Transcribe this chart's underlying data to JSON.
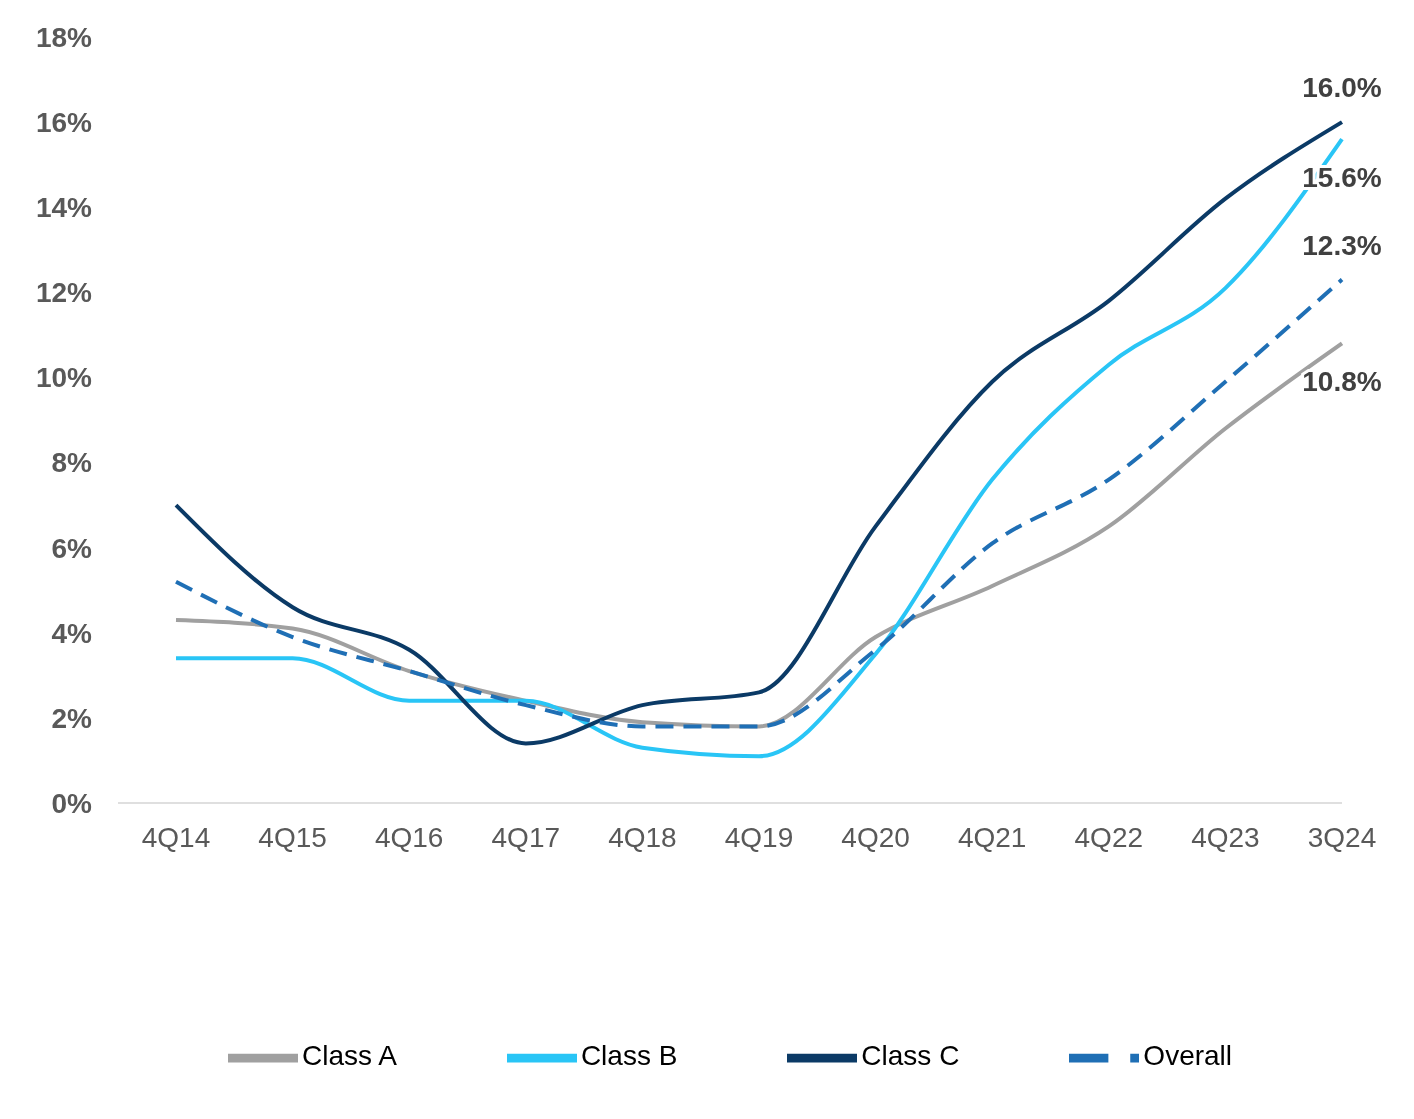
{
  "chart_data": {
    "type": "line",
    "categories": [
      "4Q14",
      "4Q15",
      "4Q16",
      "4Q17",
      "4Q18",
      "4Q19",
      "4Q20",
      "4Q21",
      "4Q22",
      "4Q23",
      "3Q24"
    ],
    "series": [
      {
        "name": "Class A",
        "color": "#a0a0a0",
        "line_style": "solid",
        "values": [
          4.3,
          4.1,
          3.1,
          2.4,
          1.9,
          1.8,
          3.9,
          5.1,
          6.5,
          8.8,
          10.8
        ],
        "value_labels": [
          null,
          null,
          null,
          null,
          null,
          null,
          null,
          null,
          null,
          null,
          "10.8%"
        ]
      },
      {
        "name": "Class B",
        "color": "#29c5f6",
        "line_style": "solid",
        "values": [
          3.4,
          3.4,
          2.4,
          2.4,
          1.3,
          1.1,
          3.5,
          7.6,
          10.3,
          12.1,
          15.6
        ],
        "value_labels": [
          null,
          null,
          null,
          null,
          null,
          null,
          null,
          null,
          null,
          null,
          "15.6%"
        ]
      },
      {
        "name": "Class C",
        "color": "#0b3a66",
        "line_style": "solid",
        "values": [
          7.0,
          4.6,
          3.6,
          1.4,
          2.3,
          2.6,
          6.5,
          9.9,
          11.8,
          14.2,
          16.0
        ],
        "value_labels": [
          null,
          null,
          null,
          null,
          null,
          null,
          null,
          null,
          null,
          null,
          "16.0%"
        ]
      },
      {
        "name": "Overall",
        "color": "#1f6fb5",
        "line_style": "dashed",
        "values": [
          5.2,
          3.9,
          3.1,
          2.3,
          1.8,
          1.8,
          3.6,
          6.1,
          7.6,
          9.9,
          12.3
        ],
        "value_labels": [
          null,
          null,
          null,
          null,
          null,
          null,
          null,
          null,
          null,
          null,
          "12.3%"
        ]
      }
    ],
    "ylim": [
      0,
      18
    ],
    "yticks": [
      {
        "value": 0,
        "label": "0%"
      },
      {
        "value": 2,
        "label": "2%"
      },
      {
        "value": 4,
        "label": "4%"
      },
      {
        "value": 6,
        "label": "6%"
      },
      {
        "value": 8,
        "label": "8%"
      },
      {
        "value": 10,
        "label": "10%"
      },
      {
        "value": 12,
        "label": "12%"
      },
      {
        "value": 14,
        "label": "14%"
      },
      {
        "value": 16,
        "label": "16%"
      },
      {
        "value": 18,
        "label": "18%"
      }
    ],
    "grid": false,
    "legend": "bottom",
    "marker": "none"
  }
}
